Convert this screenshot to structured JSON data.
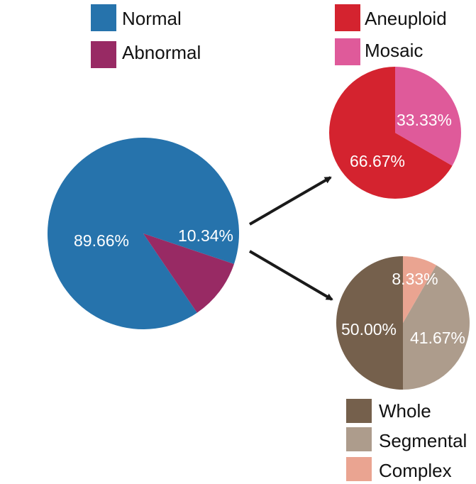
{
  "chart_data": [
    {
      "type": "pie",
      "title": "",
      "slices": [
        {
          "label": "Normal",
          "value": 89.66,
          "display": "89.66%",
          "color": "#2673ac"
        },
        {
          "label": "Abnormal",
          "value": 10.34,
          "display": "10.34%",
          "color": "#982a64"
        }
      ],
      "legend": [
        "Normal",
        "Abnormal"
      ],
      "legend_placement": "top"
    },
    {
      "type": "pie",
      "title": "",
      "slices": [
        {
          "label": "Aneuploid",
          "value": 66.67,
          "display": "66.67%",
          "color": "#d4232f"
        },
        {
          "label": "Mosaic",
          "value": 33.33,
          "display": "33.33%",
          "color": "#df5a9a"
        }
      ],
      "legend": [
        "Aneuploid",
        "Mosaic"
      ],
      "legend_placement": "top"
    },
    {
      "type": "pie",
      "title": "",
      "slices": [
        {
          "label": "Whole",
          "value": 50.0,
          "display": "50.00%",
          "color": "#75604c"
        },
        {
          "label": "Segmental",
          "value": 41.67,
          "display": "41.67%",
          "color": "#ad9c8c"
        },
        {
          "label": "Complex",
          "value": 8.33,
          "display": "8.33%",
          "color": "#eaa491"
        }
      ],
      "legend": [
        "Whole",
        "Segmental",
        "Complex"
      ],
      "legend_placement": "bottom"
    }
  ],
  "arrow_color": "#1a1a1a"
}
